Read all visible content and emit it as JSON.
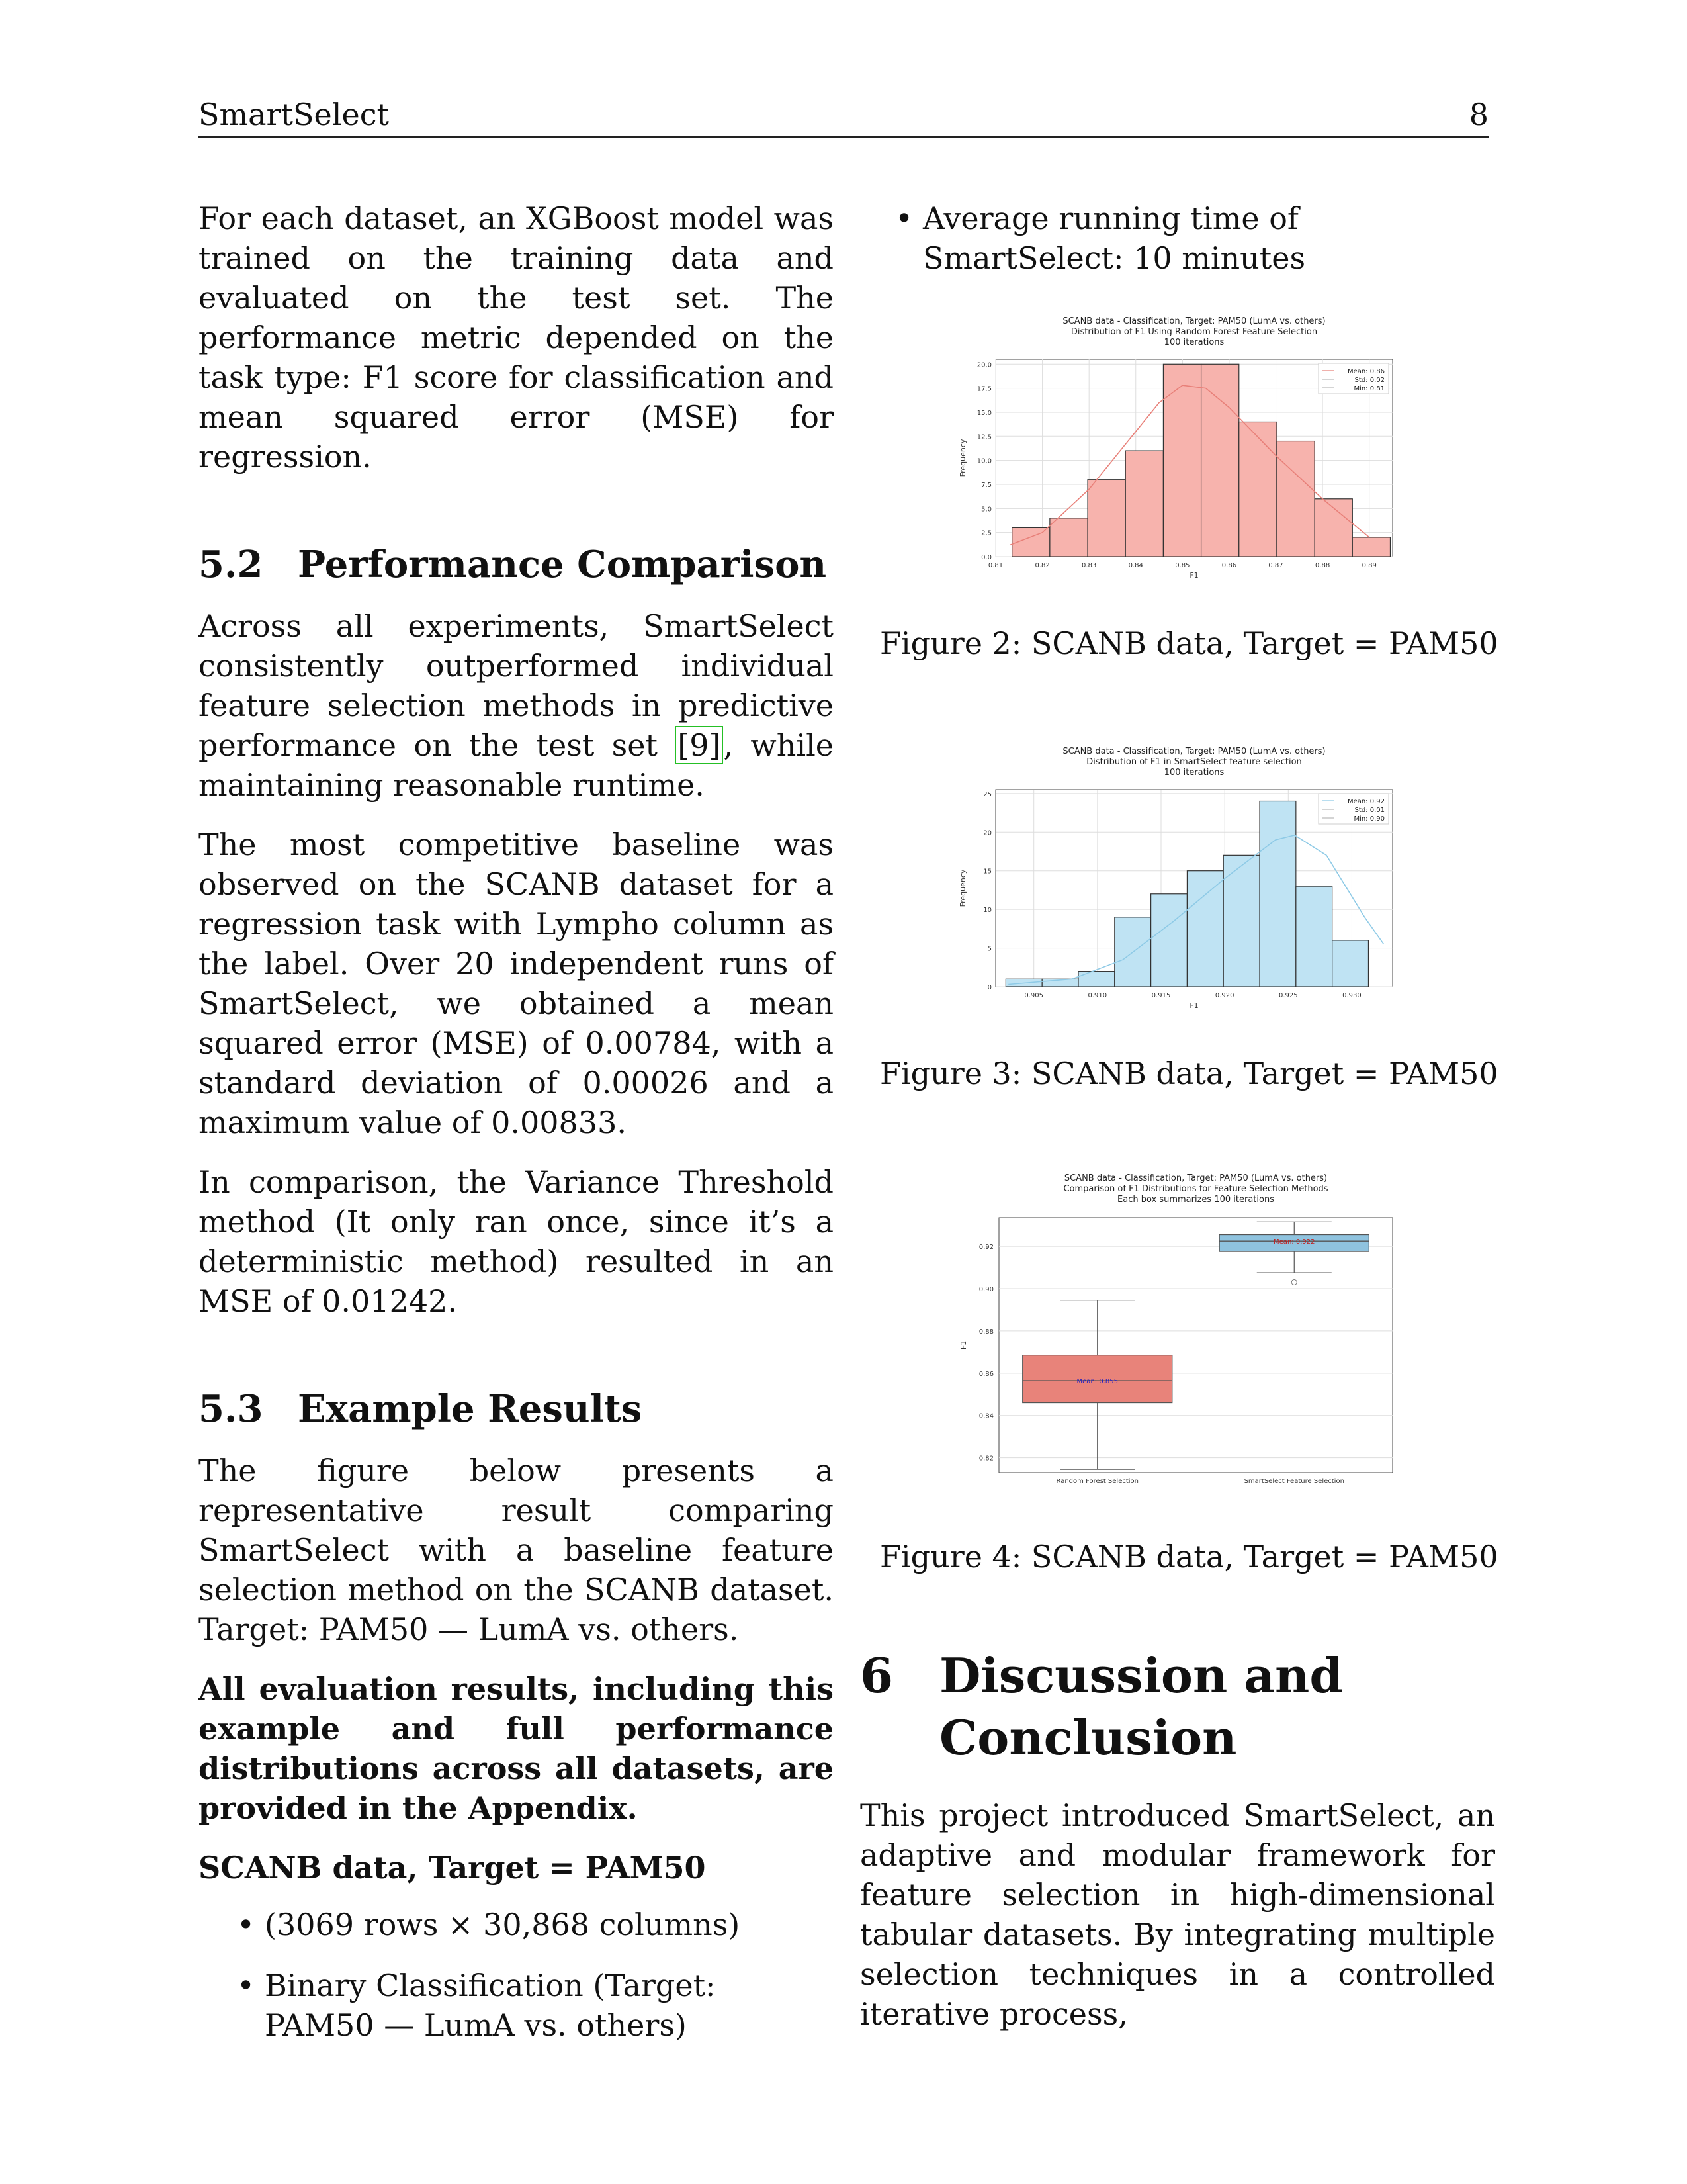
{
  "header": {
    "title": "SmartSelect",
    "page_number": "8"
  },
  "left": {
    "intro": "For each dataset, an XGBoost model was trained on the training data and evaluated on the test set. The performance metric depended on the task type: F1 score for classification and mean squared error (MSE) for regression.",
    "s52_num": "5.2",
    "s52_title": "Performance Comparison",
    "s52_p1_before": "Across all experiments, SmartSelect consistently outperformed individual feature selection methods in predictive performance on the test set ",
    "s52_p1_ref": "[9]",
    "s52_p1_after": ", while maintaining reasonable runtime.",
    "s52_p2": "The most competitive baseline was observed on the SCANB dataset for a regression task with Lympho column as the label. Over 20 independent runs of SmartSelect, we obtained a mean squared error (MSE) of 0.00784, with a standard deviation of 0.00026 and a maximum value of 0.00833.",
    "s52_p3": "In comparison, the Variance Threshold method (It only ran once, since it’s a deterministic method) resulted in an MSE of 0.01242.",
    "s53_num": "5.3",
    "s53_title": "Example Results",
    "s53_p1": "The figure below presents a representative result comparing SmartSelect with a baseline feature selection method on the SCANB dataset. Target: PAM50 — LumA vs. others.",
    "s53_bold": "All evaluation results, including this example and full performance distributions across all datasets, are provided in the Appendix.",
    "scanb_heading": "SCANB data, Target = PAM50",
    "bullet1": "(3069 rows × 30,868 columns)",
    "bullet2": "Binary Classification (Target: PAM50 — LumA vs. others)"
  },
  "right": {
    "bullet3": "Average running time of SmartSelect: 10 minutes",
    "fig2_caption": "Figure 2: SCANB data, Target = PAM50",
    "fig3_caption": "Figure 3: SCANB data, Target = PAM50",
    "fig4_caption": "Figure 4: SCANB data, Target = PAM50",
    "s6_num": "6",
    "s6_title": "Discussion and Conclusion",
    "s6_p1": "This project introduced SmartSelect, an adaptive and modular framework for feature selection in high-dimensional tabular datasets. By integrating multiple selection techniques in a controlled iterative process,"
  },
  "colors": {
    "hist1_fill": "#f7b3ad",
    "hist1_line": "#e88079",
    "hist2_fill": "#bfe3f3",
    "hist2_line": "#8ecae6",
    "box_red": "#e8837a",
    "box_blue": "#8fc3df"
  },
  "chart_data": [
    {
      "type": "bar",
      "title": [
        "SCANB data - Classification, Target: PAM50 (LumA vs. others)",
        "Distribution of F1 Using Random Forest Feature Selection",
        "100 iterations"
      ],
      "xlabel": "F1",
      "ylabel": "Frequency",
      "xlim": [
        0.81,
        0.895
      ],
      "ylim": [
        0,
        20.5
      ],
      "xticks": [
        "0.81",
        "0.82",
        "0.83",
        "0.84",
        "0.85",
        "0.86",
        "0.87",
        "0.88",
        "0.89"
      ],
      "yticks": [
        "0.0",
        "2.5",
        "5.0",
        "7.5",
        "10.0",
        "12.5",
        "15.0",
        "17.5",
        "20.0"
      ],
      "bin_start": 0.8135,
      "bin_width": 0.0081,
      "values": [
        3,
        4,
        8,
        11,
        20,
        20,
        14,
        12,
        6,
        2
      ],
      "kde": [
        [
          0.813,
          1.2
        ],
        [
          0.82,
          2.5
        ],
        [
          0.83,
          7
        ],
        [
          0.84,
          13
        ],
        [
          0.845,
          16
        ],
        [
          0.85,
          17.8
        ],
        [
          0.855,
          17.5
        ],
        [
          0.86,
          15.5
        ],
        [
          0.87,
          10.5
        ],
        [
          0.88,
          6
        ],
        [
          0.89,
          2
        ]
      ],
      "legend": [
        "Mean: 0.86",
        "Std: 0.02",
        "Min: 0.81"
      ],
      "grid": true,
      "legend_position": "top-right"
    },
    {
      "type": "bar",
      "title": [
        "SCANB data - Classification, Target: PAM50 (LumA vs. others)",
        "Distribution of F1 in SmartSelect feature selection",
        "100 iterations"
      ],
      "xlabel": "F1",
      "ylabel": "Frequency",
      "xlim": [
        0.902,
        0.9332
      ],
      "ylim": [
        0,
        25.5
      ],
      "xticks": [
        "0.905",
        "0.910",
        "0.915",
        "0.920",
        "0.925",
        "0.930"
      ],
      "yticks": [
        "0",
        "5",
        "10",
        "15",
        "20",
        "25"
      ],
      "bin_start": 0.9028,
      "bin_width": 0.00285,
      "values": [
        1,
        1,
        2,
        9,
        12,
        15,
        17,
        24,
        13,
        6
      ],
      "kde": [
        [
          0.903,
          0.3
        ],
        [
          0.908,
          1
        ],
        [
          0.912,
          3.5
        ],
        [
          0.916,
          8.5
        ],
        [
          0.92,
          14
        ],
        [
          0.924,
          19
        ],
        [
          0.9255,
          19.6
        ],
        [
          0.928,
          17
        ],
        [
          0.931,
          9
        ],
        [
          0.9325,
          5.5
        ]
      ],
      "legend": [
        "Mean: 0.92",
        "Std: 0.01",
        "Min: 0.90"
      ],
      "grid": true,
      "legend_position": "top-right"
    },
    {
      "type": "box",
      "title": [
        "SCANB data - Classification, Target: PAM50 (LumA vs. others)",
        "Comparison of F1 Distributions for Feature Selection Methods",
        "Each box summarizes 100 iterations"
      ],
      "ylabel": "F1",
      "ylim": [
        0.813,
        0.9335
      ],
      "yticks": [
        "0.82",
        "0.84",
        "0.86",
        "0.88",
        "0.90",
        "0.92"
      ],
      "categories": [
        "Random Forest Selection",
        "SmartSelect Feature Selection"
      ],
      "boxes": [
        {
          "whisker_low": 0.8145,
          "q1": 0.846,
          "median": 0.8565,
          "q3": 0.8685,
          "whisker_high": 0.8945,
          "outliers": [],
          "mean_label": "Mean: 0.855"
        },
        {
          "whisker_low": 0.9075,
          "q1": 0.9175,
          "median": 0.9225,
          "q3": 0.9255,
          "whisker_high": 0.9315,
          "outliers": [
            0.903
          ],
          "mean_label": "Mean: 0.922"
        }
      ],
      "grid": true
    }
  ]
}
